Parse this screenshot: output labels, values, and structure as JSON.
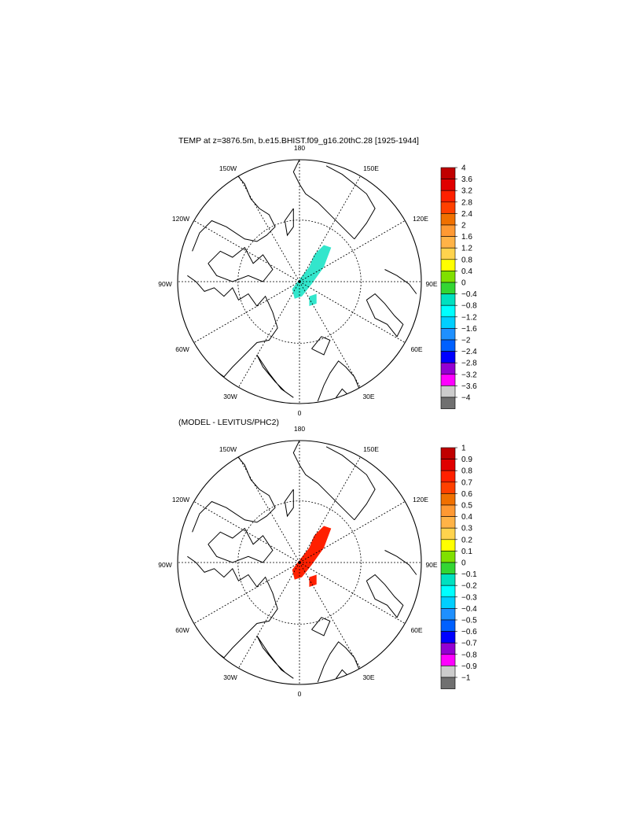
{
  "page": {
    "title_top": "TEMP at z=3876.5m, b.e15.BHIST.f09_g16.20thC.28 [1925-1944]",
    "title_bottom": "(MODEL - LEVITUS/PHC2)"
  },
  "map": {
    "projection": "polar-stereographic-north",
    "lon_labels": [
      "180",
      "150E",
      "120E",
      "90E",
      "60E",
      "30E",
      "0",
      "30W",
      "60W",
      "90W",
      "120W",
      "150W"
    ]
  },
  "colors": {
    "colorbar": [
      "#c00000",
      "#e00000",
      "#ff2000",
      "#ff4000",
      "#f07000",
      "#ff9933",
      "#ffb347",
      "#ffd34d",
      "#ffff00",
      "#80e000",
      "#33d633",
      "#00e0c0",
      "#00ffff",
      "#00cfff",
      "#1e90ff",
      "#0060ff",
      "#0000ff",
      "#9400d3",
      "#ff00ff",
      "#cccccc",
      "#707070"
    ],
    "anomaly_top": "#33e6cc",
    "anomaly_bottom": "#ff2000"
  },
  "colorbar_top": {
    "labels": [
      "4",
      "3.6",
      "3.2",
      "2.8",
      "2.4",
      "2",
      "1.6",
      "1.2",
      "0.8",
      "0.4",
      "0",
      "−0.4",
      "−0.8",
      "−1.2",
      "−1.6",
      "−2",
      "−2.4",
      "−2.8",
      "−3.2",
      "−3.6",
      "−4"
    ]
  },
  "colorbar_bottom": {
    "labels": [
      "1",
      "0.9",
      "0.8",
      "0.7",
      "0.6",
      "0.5",
      "0.4",
      "0.3",
      "0.2",
      "0.1",
      "0",
      "−0.1",
      "−0.2",
      "−0.3",
      "−0.4",
      "−0.5",
      "−0.6",
      "−0.7",
      "−0.8",
      "−0.9",
      "−1"
    ]
  }
}
